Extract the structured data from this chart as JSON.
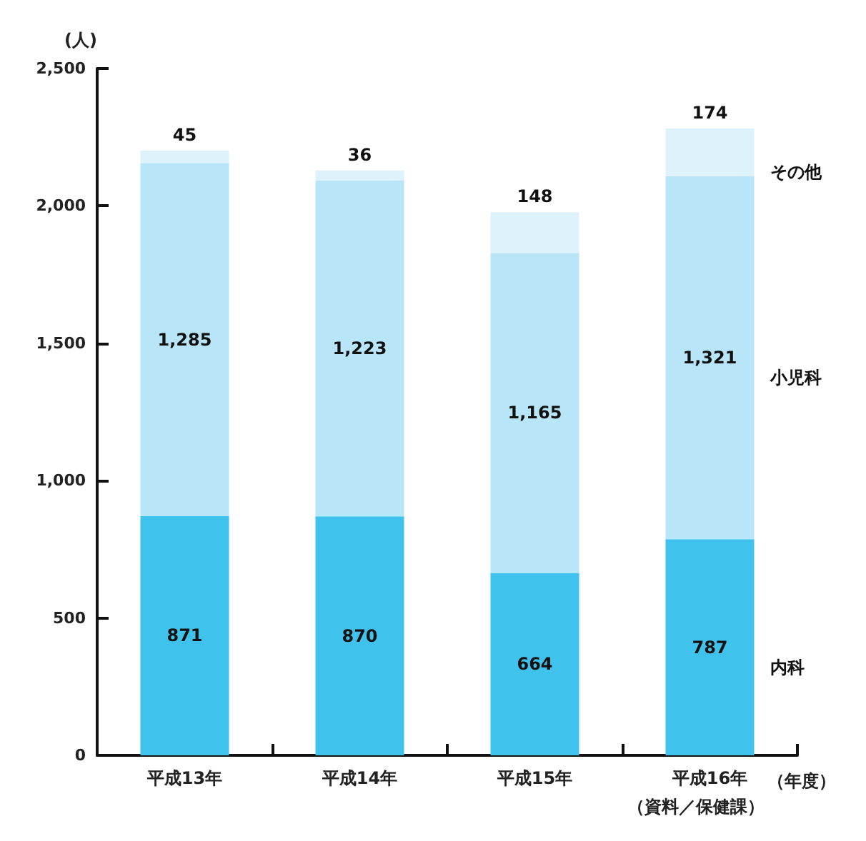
{
  "chart_data": {
    "type": "bar",
    "stacked": true,
    "ylabel": "(人)",
    "xlabel": "（年度）",
    "annotations": [
      "（資料／保健課）"
    ],
    "categories": [
      "平成13年",
      "平成14年",
      "平成15年",
      "平成16年"
    ],
    "ylim": [
      0,
      2500
    ],
    "yticks": [
      0,
      500,
      {
        "value": 1000,
        "label": "1,000"
      },
      {
        "value": 1500,
        "label": "1,500"
      },
      {
        "value": 2000,
        "label": "2,000"
      },
      {
        "value": 2500,
        "label": "2,500"
      }
    ],
    "grid": false,
    "legend": false,
    "series": [
      {
        "name": "内科",
        "color": "#3fc3ec",
        "values": [
          871,
          870,
          664,
          787
        ],
        "value_labels": [
          "871",
          "870",
          "664",
          "787"
        ]
      },
      {
        "name": "小児科",
        "color": "#b9e5f8",
        "values": [
          1285,
          1223,
          1165,
          1321
        ],
        "value_labels": [
          "1,285",
          "1,223",
          "1,165",
          "1,321"
        ]
      },
      {
        "name": "その他",
        "color": "#def2fc",
        "values": [
          45,
          36,
          148,
          174
        ],
        "value_labels": [
          "45",
          "36",
          "148",
          "174"
        ]
      }
    ]
  }
}
